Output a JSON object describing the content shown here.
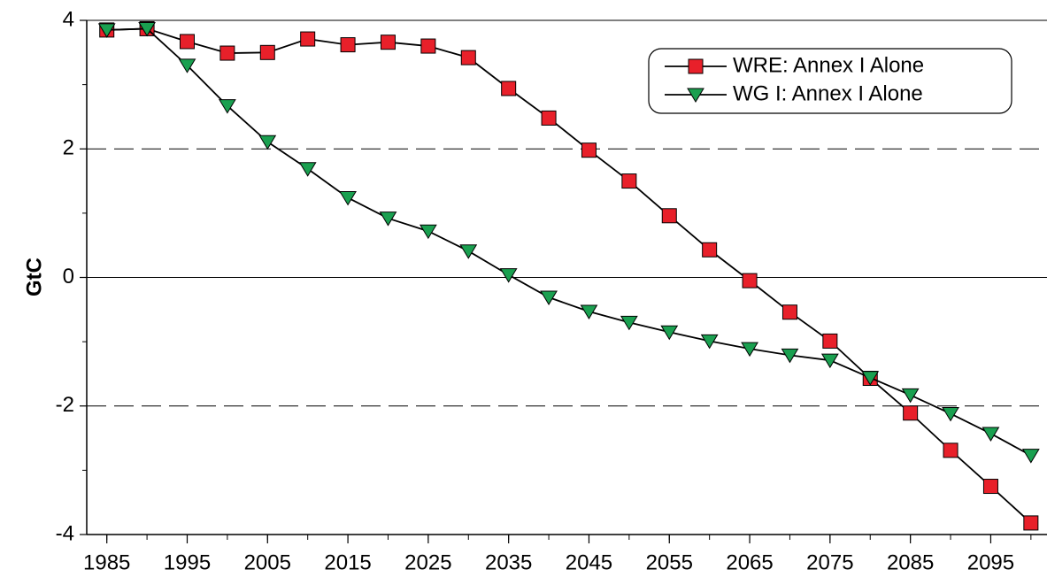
{
  "chart_data": {
    "type": "line",
    "y_label": "GtC",
    "x": [
      1985,
      1990,
      1995,
      2000,
      2005,
      2010,
      2015,
      2020,
      2025,
      2030,
      2035,
      2040,
      2045,
      2050,
      2055,
      2060,
      2065,
      2070,
      2075,
      2080,
      2085,
      2090,
      2095,
      2100
    ],
    "series": [
      {
        "name": "WRE: Annex I Alone",
        "color": "#e8202a",
        "marker": "square",
        "values": [
          3.85,
          3.87,
          3.67,
          3.49,
          3.5,
          3.71,
          3.62,
          3.66,
          3.6,
          3.42,
          2.94,
          2.48,
          1.98,
          1.5,
          0.96,
          0.43,
          -0.05,
          -0.54,
          -0.99,
          -1.57,
          -2.11,
          -2.69,
          -3.25,
          -3.82
        ]
      },
      {
        "name": "WG I: Annex I Alone",
        "color": "#1aa050",
        "marker": "triangle-down",
        "values": [
          3.85,
          3.87,
          3.3,
          2.67,
          2.11,
          1.69,
          1.24,
          0.92,
          0.72,
          0.41,
          0.04,
          -0.31,
          -0.53,
          -0.7,
          -0.85,
          -0.99,
          -1.11,
          -1.21,
          -1.29,
          -1.56,
          -1.83,
          -2.12,
          -2.43,
          -2.77
        ]
      }
    ],
    "xlim": [
      1982.5,
      2102
    ],
    "xticks": [
      1985,
      1995,
      2005,
      2015,
      2025,
      2035,
      2045,
      2055,
      2065,
      2075,
      2085,
      2095
    ],
    "ylim": [
      -4,
      4
    ],
    "yticks": [
      -4,
      -2,
      0,
      2,
      4
    ],
    "grid": true,
    "legend": "upper right"
  }
}
